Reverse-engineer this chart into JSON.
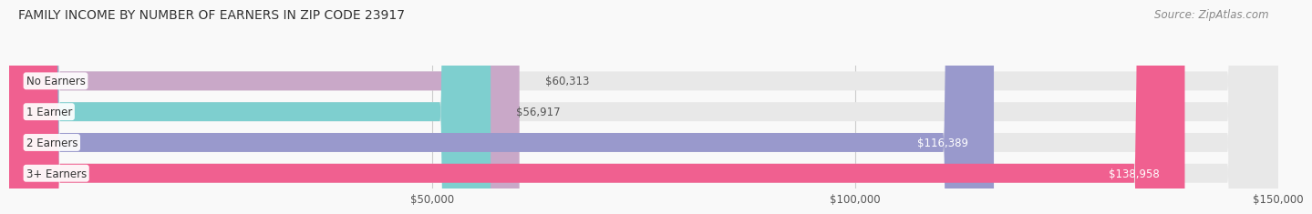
{
  "title": "FAMILY INCOME BY NUMBER OF EARNERS IN ZIP CODE 23917",
  "source": "Source: ZipAtlas.com",
  "categories": [
    "No Earners",
    "1 Earner",
    "2 Earners",
    "3+ Earners"
  ],
  "values": [
    60313,
    56917,
    116389,
    138958
  ],
  "labels": [
    "$60,313",
    "$56,917",
    "$116,389",
    "$138,958"
  ],
  "bar_colors": [
    "#c9a8c8",
    "#7ecfcf",
    "#9999cc",
    "#f06090"
  ],
  "label_colors": [
    "#555555",
    "#555555",
    "#ffffff",
    "#ffffff"
  ],
  "xlim": [
    0,
    150000
  ],
  "xticks": [
    50000,
    100000,
    150000
  ],
  "xticklabels": [
    "$50,000",
    "$100,000",
    "$150,000"
  ],
  "title_fontsize": 10,
  "source_fontsize": 8.5,
  "label_fontsize": 8.5,
  "category_fontsize": 8.5,
  "background_color": "#f9f9f9"
}
